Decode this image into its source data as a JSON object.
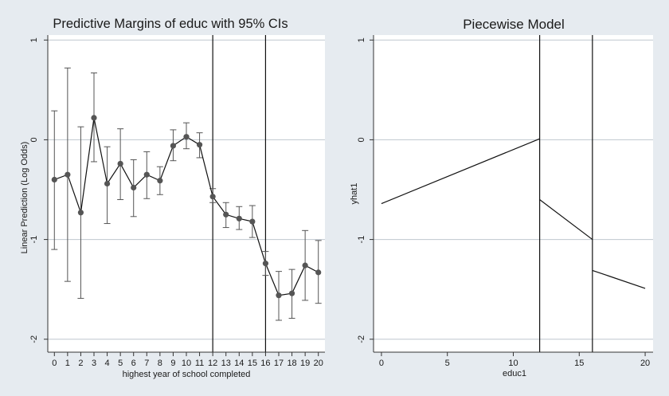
{
  "chart_data": [
    {
      "type": "line",
      "title": "Predictive Margins of educ with 95% CIs",
      "xlabel": "highest year of school completed",
      "ylabel": "Linear Prediction (Log Odds)",
      "x_ticks": [
        0,
        1,
        2,
        3,
        4,
        5,
        6,
        7,
        8,
        9,
        10,
        11,
        12,
        13,
        14,
        15,
        16,
        17,
        18,
        19,
        20
      ],
      "y_ticks": [
        1,
        0,
        -1,
        -2
      ],
      "xlim": [
        -0.5,
        20.5
      ],
      "ylim": [
        -2.05,
        1.05
      ],
      "grid": "horizontal",
      "reference_lines_x": [
        12,
        16
      ],
      "series": [
        {
          "x": [
            0,
            1,
            2,
            3,
            4,
            5,
            6,
            7,
            8,
            9,
            10,
            11,
            12,
            13,
            14,
            15,
            16,
            17,
            18,
            19,
            20
          ],
          "y": [
            -0.4,
            -0.35,
            -0.73,
            0.22,
            -0.44,
            -0.24,
            -0.48,
            -0.35,
            -0.41,
            -0.06,
            0.03,
            -0.05,
            -0.57,
            -0.75,
            -0.79,
            -0.82,
            -1.24,
            -1.56,
            -1.54,
            -1.26,
            -1.33
          ],
          "ci_low": [
            -1.1,
            -1.42,
            -1.59,
            -0.22,
            -0.84,
            -0.6,
            -0.77,
            -0.59,
            -0.55,
            -0.21,
            -0.09,
            -0.18,
            -0.63,
            -0.88,
            -0.9,
            -0.98,
            -1.36,
            -1.81,
            -1.79,
            -1.61,
            -1.64
          ],
          "ci_high": [
            0.29,
            0.72,
            0.13,
            0.67,
            -0.07,
            0.11,
            -0.2,
            -0.12,
            -0.27,
            0.1,
            0.17,
            0.07,
            -0.49,
            -0.63,
            -0.67,
            -0.66,
            -1.12,
            -1.32,
            -1.3,
            -0.91,
            -1.01
          ]
        }
      ]
    },
    {
      "type": "line",
      "title": "Piecewise Model",
      "xlabel": "educ1",
      "ylabel": "yhat1",
      "x_ticks": [
        0,
        5,
        10,
        15,
        20
      ],
      "y_ticks": [
        1,
        0,
        -1,
        -2
      ],
      "xlim": [
        -0.6,
        20.6
      ],
      "ylim": [
        -2.05,
        1.05
      ],
      "grid": "horizontal",
      "reference_lines_x": [
        12,
        16
      ],
      "segments": [
        {
          "x": [
            0,
            12
          ],
          "y": [
            -0.64,
            0.01
          ]
        },
        {
          "x": [
            12,
            16
          ],
          "y": [
            -0.6,
            -1.0
          ]
        },
        {
          "x": [
            16,
            20
          ],
          "y": [
            -1.31,
            -1.49
          ]
        }
      ]
    }
  ]
}
